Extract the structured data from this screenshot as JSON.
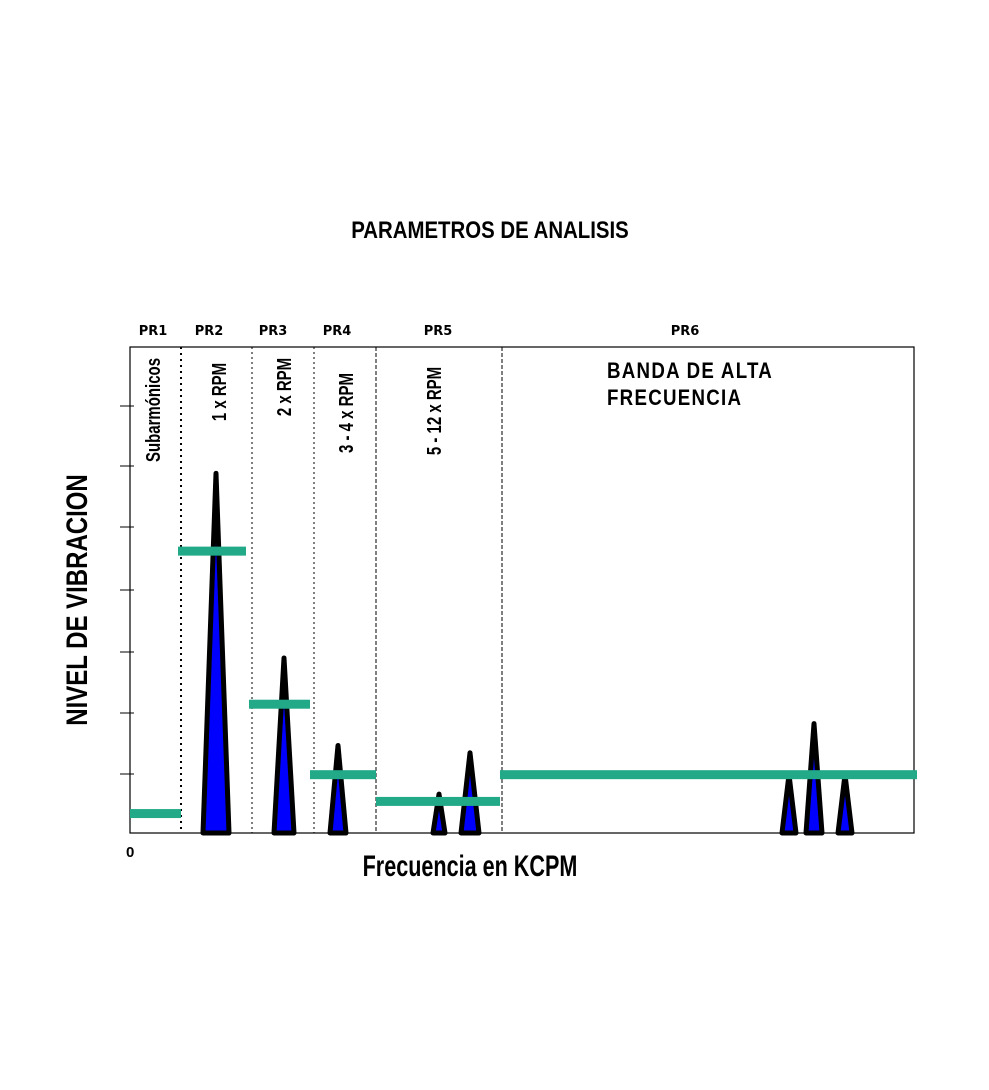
{
  "title": "PARAMETROS  DE  ANALISIS",
  "y_axis_label": "NIVEL  DE  VIBRACION",
  "x_axis_label": "Frecuencia  en  KCPM",
  "origin_label": "0",
  "high_band_text": [
    "BANDA DE ALTA",
    "FRECUENCIA"
  ],
  "colors": {
    "peak_fill": "#0000ff",
    "peak_outline": "#000000",
    "threshold": "#22aa88",
    "frame": "#000000"
  },
  "bands": [
    {
      "name": "PR1",
      "label": "Subarmónicos",
      "divider": "dotted"
    },
    {
      "name": "PR2",
      "label": "1 x RPM",
      "divider": "dotted"
    },
    {
      "name": "PR3",
      "label": "2 x RPM",
      "divider": "dotted"
    },
    {
      "name": "PR4",
      "label": "3 - 4 x RPM",
      "divider": "dashed"
    },
    {
      "name": "PR5",
      "label": "5 - 12 x RPM",
      "divider": "dashed"
    },
    {
      "name": "PR6",
      "label": "",
      "divider": "none"
    }
  ],
  "chart_data": {
    "type": "diagram",
    "title": "PARAMETROS  DE  ANALISIS",
    "xlabel": "Frecuencia  en  KCPM",
    "ylabel": "NIVEL  DE  VIBRACION",
    "y_scale": "relative level, 0-1",
    "peaks": [
      {
        "band": "PR2",
        "level": 0.74
      },
      {
        "band": "PR3",
        "level": 0.36
      },
      {
        "band": "PR4",
        "level": 0.18
      },
      {
        "band": "PR5",
        "level": 0.08
      },
      {
        "band": "PR5",
        "level": 0.165
      },
      {
        "band": "PR6",
        "level": 0.12
      },
      {
        "band": "PR6",
        "level": 0.225
      },
      {
        "band": "PR6",
        "level": 0.12
      }
    ],
    "thresholds": [
      {
        "band": "PR1",
        "level": 0.04
      },
      {
        "band": "PR2",
        "level": 0.58
      },
      {
        "band": "PR3",
        "level": 0.265
      },
      {
        "band": "PR4",
        "level": 0.12
      },
      {
        "band": "PR5",
        "level": 0.065
      },
      {
        "band": "PR6",
        "level": 0.12
      }
    ],
    "y_ticks": 7
  }
}
